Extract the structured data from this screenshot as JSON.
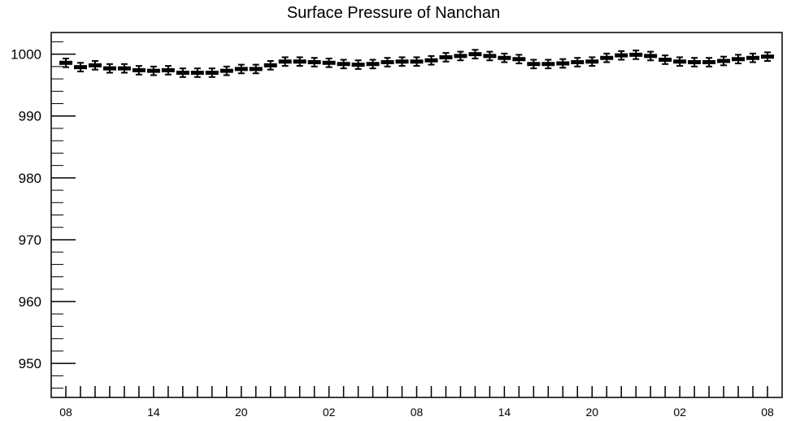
{
  "chart_data": {
    "type": "scatter",
    "title": "Surface Pressure of Nanchan",
    "xlabel": "",
    "ylabel": "",
    "ylim": [
      944.5,
      1003.5
    ],
    "y_ticks": [
      950,
      960,
      970,
      980,
      990,
      1000
    ],
    "y_tick_labels": [
      "950",
      "960",
      "970",
      "980",
      "990",
      "1000"
    ],
    "x_tick_labels": [
      "08",
      "14",
      "20",
      "02",
      "08",
      "14",
      "20",
      "02",
      "08"
    ],
    "error_bars": true,
    "series": [
      {
        "values": [
          998.6,
          997.9,
          998.2,
          997.7,
          997.7,
          997.4,
          997.3,
          997.4,
          997.0,
          997.0,
          997.0,
          997.3,
          997.6,
          997.6,
          998.2,
          998.8,
          998.8,
          998.7,
          998.6,
          998.4,
          998.3,
          998.4,
          998.7,
          998.8,
          998.8,
          999.0,
          999.5,
          999.7,
          1000.0,
          999.7,
          999.4,
          999.2,
          998.4,
          998.4,
          998.5,
          998.7,
          998.8,
          999.4,
          999.8,
          999.9,
          999.7,
          999.1,
          998.8,
          998.7,
          998.7,
          998.9,
          999.2,
          999.4,
          999.6
        ],
        "errors": [
          0.7,
          0.7,
          0.7,
          0.7,
          0.7,
          0.7,
          0.7,
          0.7,
          0.7,
          0.7,
          0.7,
          0.7,
          0.7,
          0.7,
          0.7,
          0.7,
          0.7,
          0.7,
          0.7,
          0.7,
          0.7,
          0.7,
          0.7,
          0.7,
          0.7,
          0.7,
          0.7,
          0.7,
          0.7,
          0.7,
          0.7,
          0.7,
          0.7,
          0.7,
          0.7,
          0.7,
          0.7,
          0.7,
          0.7,
          0.7,
          0.7,
          0.7,
          0.7,
          0.7,
          0.7,
          0.7,
          0.7,
          0.7,
          0.7
        ]
      }
    ],
    "grid": false,
    "marker_color": "#000000"
  }
}
